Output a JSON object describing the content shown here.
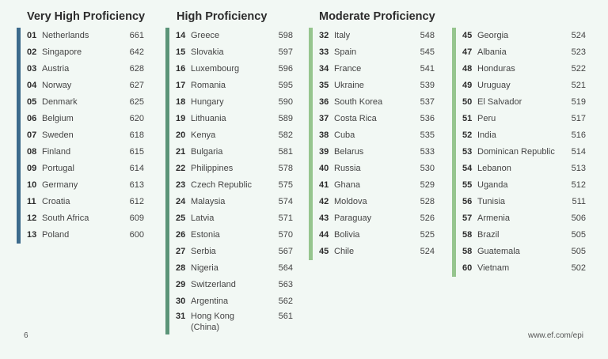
{
  "headings": {
    "very_high": "Very High Proficiency",
    "high": "High Proficiency",
    "moderate": "Moderate Proficiency"
  },
  "colors": {
    "very_high_bar": "#3d6b8c",
    "high_bar": "#5b9478",
    "moderate_bar": "#96c58e"
  },
  "columns": [
    {
      "rows": [
        {
          "rank": "01",
          "name": "Netherlands",
          "score": "661"
        },
        {
          "rank": "02",
          "name": "Singapore",
          "score": "642"
        },
        {
          "rank": "03",
          "name": "Austria",
          "score": "628"
        },
        {
          "rank": "04",
          "name": "Norway",
          "score": "627"
        },
        {
          "rank": "05",
          "name": "Denmark",
          "score": "625"
        },
        {
          "rank": "06",
          "name": "Belgium",
          "score": "620"
        },
        {
          "rank": "07",
          "name": "Sweden",
          "score": "618"
        },
        {
          "rank": "08",
          "name": "Finland",
          "score": "615"
        },
        {
          "rank": "09",
          "name": "Portugal",
          "score": "614"
        },
        {
          "rank": "10",
          "name": "Germany",
          "score": "613"
        },
        {
          "rank": "11",
          "name": "Croatia",
          "score": "612"
        },
        {
          "rank": "12",
          "name": "South Africa",
          "score": "609"
        },
        {
          "rank": "13",
          "name": "Poland",
          "score": "600"
        }
      ]
    },
    {
      "rows": [
        {
          "rank": "14",
          "name": "Greece",
          "score": "598"
        },
        {
          "rank": "15",
          "name": "Slovakia",
          "score": "597"
        },
        {
          "rank": "16",
          "name": "Luxembourg",
          "score": "596"
        },
        {
          "rank": "17",
          "name": "Romania",
          "score": "595"
        },
        {
          "rank": "18",
          "name": "Hungary",
          "score": "590"
        },
        {
          "rank": "19",
          "name": "Lithuania",
          "score": "589"
        },
        {
          "rank": "20",
          "name": "Kenya",
          "score": "582"
        },
        {
          "rank": "21",
          "name": "Bulgaria",
          "score": "581"
        },
        {
          "rank": "22",
          "name": "Philippines",
          "score": "578"
        },
        {
          "rank": "23",
          "name": "Czech Republic",
          "score": "575"
        },
        {
          "rank": "24",
          "name": "Malaysia",
          "score": "574"
        },
        {
          "rank": "25",
          "name": "Latvia",
          "score": "571"
        },
        {
          "rank": "26",
          "name": "Estonia",
          "score": "570"
        },
        {
          "rank": "27",
          "name": "Serbia",
          "score": "567"
        },
        {
          "rank": "28",
          "name": "Nigeria",
          "score": "564"
        },
        {
          "rank": "29",
          "name": "Switzerland",
          "score": "563"
        },
        {
          "rank": "30",
          "name": "Argentina",
          "score": "562"
        },
        {
          "rank": "31",
          "name": "Hong Kong",
          "name2": "(China)",
          "score": "561"
        }
      ]
    },
    {
      "rows": [
        {
          "rank": "32",
          "name": "Italy",
          "score": "548"
        },
        {
          "rank": "33",
          "name": "Spain",
          "score": "545"
        },
        {
          "rank": "34",
          "name": "France",
          "score": "541"
        },
        {
          "rank": "35",
          "name": "Ukraine",
          "score": "539"
        },
        {
          "rank": "36",
          "name": "South Korea",
          "score": "537"
        },
        {
          "rank": "37",
          "name": "Costa Rica",
          "score": "536"
        },
        {
          "rank": "38",
          "name": "Cuba",
          "score": "535"
        },
        {
          "rank": "39",
          "name": "Belarus",
          "score": "533"
        },
        {
          "rank": "40",
          "name": "Russia",
          "score": "530"
        },
        {
          "rank": "41",
          "name": "Ghana",
          "score": "529"
        },
        {
          "rank": "42",
          "name": "Moldova",
          "score": "528"
        },
        {
          "rank": "43",
          "name": "Paraguay",
          "score": "526"
        },
        {
          "rank": "44",
          "name": "Bolivia",
          "score": "525"
        },
        {
          "rank": "45",
          "name": "Chile",
          "score": "524"
        }
      ]
    },
    {
      "rows": [
        {
          "rank": "45",
          "name": "Georgia",
          "score": "524"
        },
        {
          "rank": "47",
          "name": "Albania",
          "score": "523"
        },
        {
          "rank": "48",
          "name": "Honduras",
          "score": "522"
        },
        {
          "rank": "49",
          "name": "Uruguay",
          "score": "521"
        },
        {
          "rank": "50",
          "name": "El Salvador",
          "score": "519"
        },
        {
          "rank": "51",
          "name": "Peru",
          "score": "517"
        },
        {
          "rank": "52",
          "name": "India",
          "score": "516"
        },
        {
          "rank": "53",
          "name": "Dominican Republic",
          "score": "514"
        },
        {
          "rank": "54",
          "name": "Lebanon",
          "score": "513"
        },
        {
          "rank": "55",
          "name": "Uganda",
          "score": "512"
        },
        {
          "rank": "56",
          "name": "Tunisia",
          "score": "511"
        },
        {
          "rank": "57",
          "name": "Armenia",
          "score": "506"
        },
        {
          "rank": "58",
          "name": "Brazil",
          "score": "505"
        },
        {
          "rank": "58",
          "name": "Guatemala",
          "score": "505"
        },
        {
          "rank": "60",
          "name": "Vietnam",
          "score": "502"
        }
      ]
    }
  ],
  "footer": {
    "page_number": "6",
    "url": "www.ef.com/epi"
  }
}
